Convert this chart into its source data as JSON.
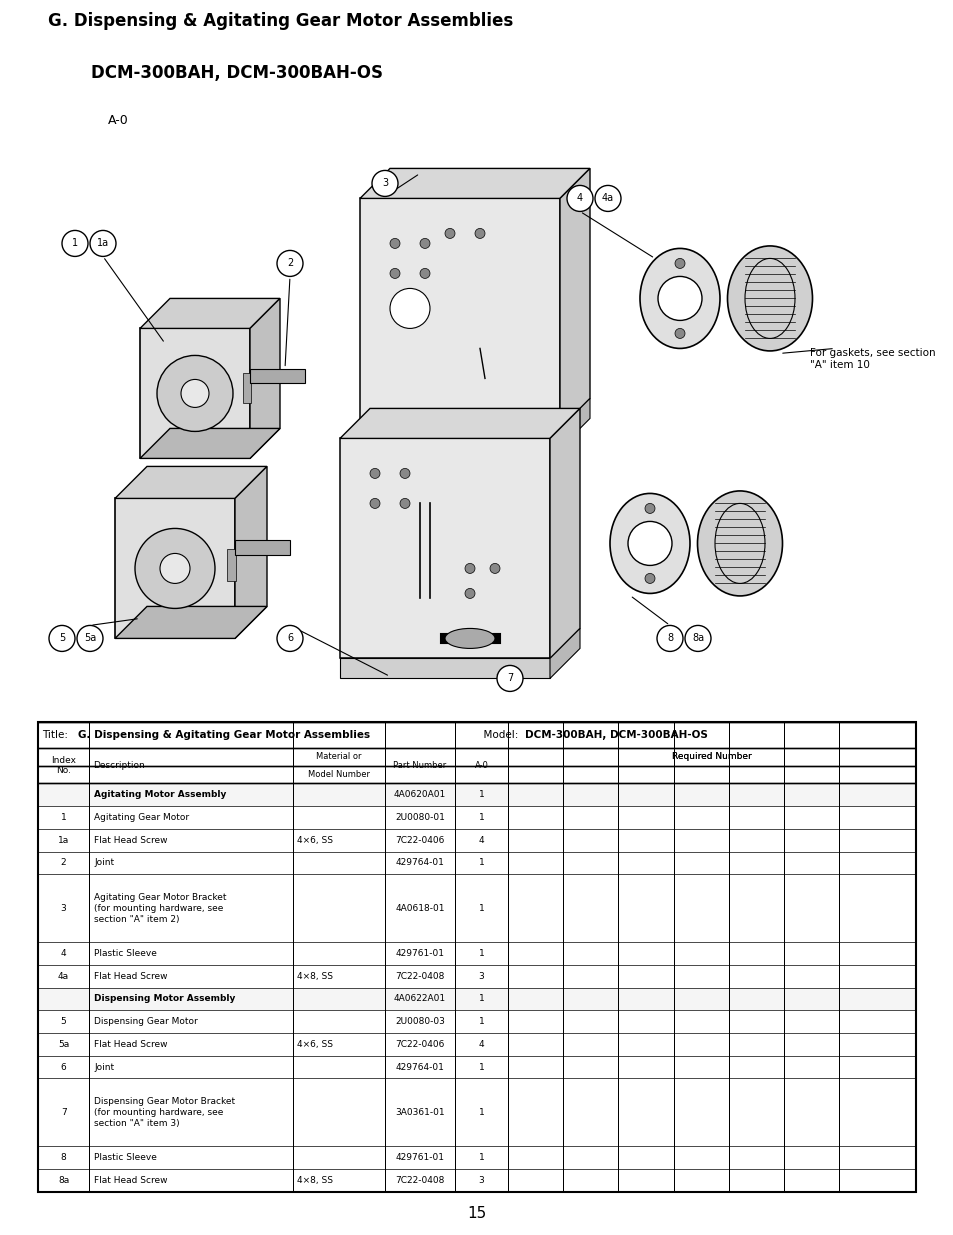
{
  "title_line1": "G. Dispensing & Agitating Gear Motor Assemblies",
  "title_line2": "DCM-300BAH, DCM-300BAH-OS",
  "title_line3": "A-0",
  "page_number": "15",
  "gasket_note": "For gaskets, see section\n\"A\" item 10",
  "table_rows": [
    {
      "index": "",
      "description": "Agitating Motor Assembly",
      "material": "",
      "part": "4A0620A01",
      "a0": "1",
      "bold": true
    },
    {
      "index": "1",
      "description": "Agitating Gear Motor",
      "material": "",
      "part": "2U0080-01",
      "a0": "1",
      "bold": false
    },
    {
      "index": "1a",
      "description": "Flat Head Screw",
      "material": "4×6, SS",
      "part": "7C22-0406",
      "a0": "4",
      "bold": false
    },
    {
      "index": "2",
      "description": "Joint",
      "material": "",
      "part": "429764-01",
      "a0": "1",
      "bold": false
    },
    {
      "index": "3",
      "description": "Agitating Gear Motor Bracket\n(for mounting hardware, see\nsection \"A\" item 2)",
      "material": "",
      "part": "4A0618-01",
      "a0": "1",
      "bold": false
    },
    {
      "index": "4",
      "description": "Plastic Sleeve",
      "material": "",
      "part": "429761-01",
      "a0": "1",
      "bold": false
    },
    {
      "index": "4a",
      "description": "Flat Head Screw",
      "material": "4×8, SS",
      "part": "7C22-0408",
      "a0": "3",
      "bold": false
    },
    {
      "index": "",
      "description": "Dispensing Motor Assembly",
      "material": "",
      "part": "4A0622A01",
      "a0": "1",
      "bold": true
    },
    {
      "index": "5",
      "description": "Dispensing Gear Motor",
      "material": "",
      "part": "2U0080-03",
      "a0": "1",
      "bold": false
    },
    {
      "index": "5a",
      "description": "Flat Head Screw",
      "material": "4×6, SS",
      "part": "7C22-0406",
      "a0": "4",
      "bold": false
    },
    {
      "index": "6",
      "description": "Joint",
      "material": "",
      "part": "429764-01",
      "a0": "1",
      "bold": false
    },
    {
      "index": "7",
      "description": "Dispensing Gear Motor Bracket\n(for mounting hardware, see\nsection \"A\" item 3)",
      "material": "",
      "part": "3A0361-01",
      "a0": "1",
      "bold": false
    },
    {
      "index": "8",
      "description": "Plastic Sleeve",
      "material": "",
      "part": "429761-01",
      "a0": "1",
      "bold": false
    },
    {
      "index": "8a",
      "description": "Flat Head Screw",
      "material": "4×8, SS",
      "part": "7C22-0408",
      "a0": "3",
      "bold": false
    }
  ],
  "bg_color": "#ffffff",
  "text_color": "#000000"
}
